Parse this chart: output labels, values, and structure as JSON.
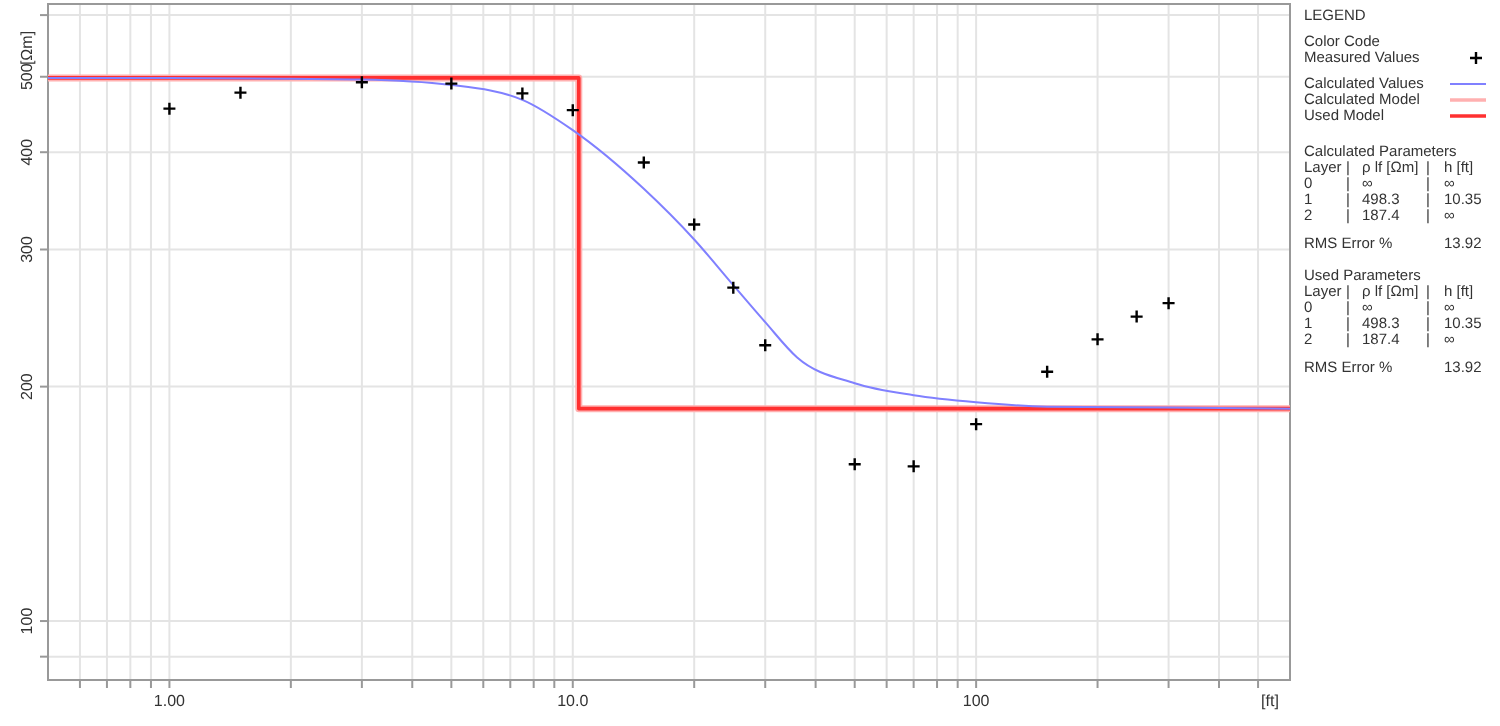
{
  "chart_data": {
    "type": "scatter",
    "xlabel": "[ft]",
    "ylabel": "[Ωm]",
    "log": "xy",
    "grid": true,
    "legend": "right",
    "legend_title": "Color Code",
    "xlim": [
      0.5,
      600
    ],
    "ylim": [
      84,
      620
    ],
    "xticks": [
      {
        "value": 0.6,
        "label": null
      },
      {
        "value": 0.7,
        "label": null
      },
      {
        "value": 0.8,
        "label": null
      },
      {
        "value": 0.9,
        "label": null
      },
      {
        "value": 1,
        "label": "1.00"
      },
      {
        "value": 2,
        "label": null
      },
      {
        "value": 3,
        "label": null
      },
      {
        "value": 4,
        "label": null
      },
      {
        "value": 5,
        "label": null
      },
      {
        "value": 6,
        "label": null
      },
      {
        "value": 7,
        "label": null
      },
      {
        "value": 8,
        "label": null
      },
      {
        "value": 9,
        "label": null
      },
      {
        "value": 10,
        "label": "10.0"
      },
      {
        "value": 20,
        "label": null
      },
      {
        "value": 30,
        "label": null
      },
      {
        "value": 40,
        "label": null
      },
      {
        "value": 50,
        "label": null
      },
      {
        "value": 60,
        "label": null
      },
      {
        "value": 70,
        "label": null
      },
      {
        "value": 80,
        "label": null
      },
      {
        "value": 90,
        "label": null
      },
      100,
      {
        "value": 200,
        "label": null
      },
      {
        "value": 300,
        "label": null
      },
      {
        "value": 400,
        "label": null
      },
      {
        "value": 500,
        "label": null
      }
    ],
    "yticks": [
      {
        "value": 90,
        "label": null
      },
      100,
      200,
      300,
      400,
      500,
      {
        "value": 600,
        "label": null
      }
    ],
    "series": [
      {
        "name": "Measured Values",
        "marker": "cross",
        "color": "#000000",
        "x": [
          1,
          1.5,
          3,
          5,
          7.5,
          10,
          15,
          20,
          25,
          30,
          50,
          70,
          100,
          150,
          200,
          250,
          300
        ],
        "values": [
          455,
          477,
          492,
          490,
          476,
          453,
          388,
          323,
          268,
          226,
          159,
          158,
          179,
          209,
          230,
          246,
          256
        ]
      },
      {
        "name": "Calculated Values",
        "type": "line",
        "color": "#8080ff",
        "x": [
          0.5,
          1,
          2,
          3,
          5,
          7.5,
          10,
          15,
          20,
          25,
          30,
          36,
          50,
          70,
          100,
          150,
          300,
          600
        ],
        "values": [
          498,
          498,
          497,
          496,
          488,
          467,
          427,
          359,
          309,
          270,
          242,
          218,
          202,
          195,
          191,
          188.5,
          188,
          187.4
        ]
      },
      {
        "name": "Calculated Model",
        "type": "step",
        "color": "#ffb0b0",
        "x": [
          0.5,
          10.35,
          600
        ],
        "values": [
          498.3,
          187.4,
          187.4
        ]
      },
      {
        "name": "Used Model",
        "type": "step",
        "color": "#ff3030",
        "x": [
          0.5,
          10.35,
          600
        ],
        "values": [
          498.3,
          187.4,
          187.4
        ]
      }
    ],
    "annotations": [
      "LEGEND",
      "Calculated Parameters",
      "Layer\t|\tρ lf [Ωm]\t|\th [ft]",
      "0\t|\t∞\t|\t∞",
      "1\t|\t498.3\t|\t10.35",
      "2\t|\t187.4\t|\t∞",
      "RMS Error %\t\t\t\t13.92",
      "Used Parameters",
      "Layer\t|\tρ lf [Ωm]\t|\th [ft]",
      "0\t|\t∞\t|\t∞",
      "1\t|\t498.3\t|\t10.35",
      "2\t|\t187.4\t|\t∞",
      "RMS Error %\t\t\t\t13.92"
    ]
  }
}
